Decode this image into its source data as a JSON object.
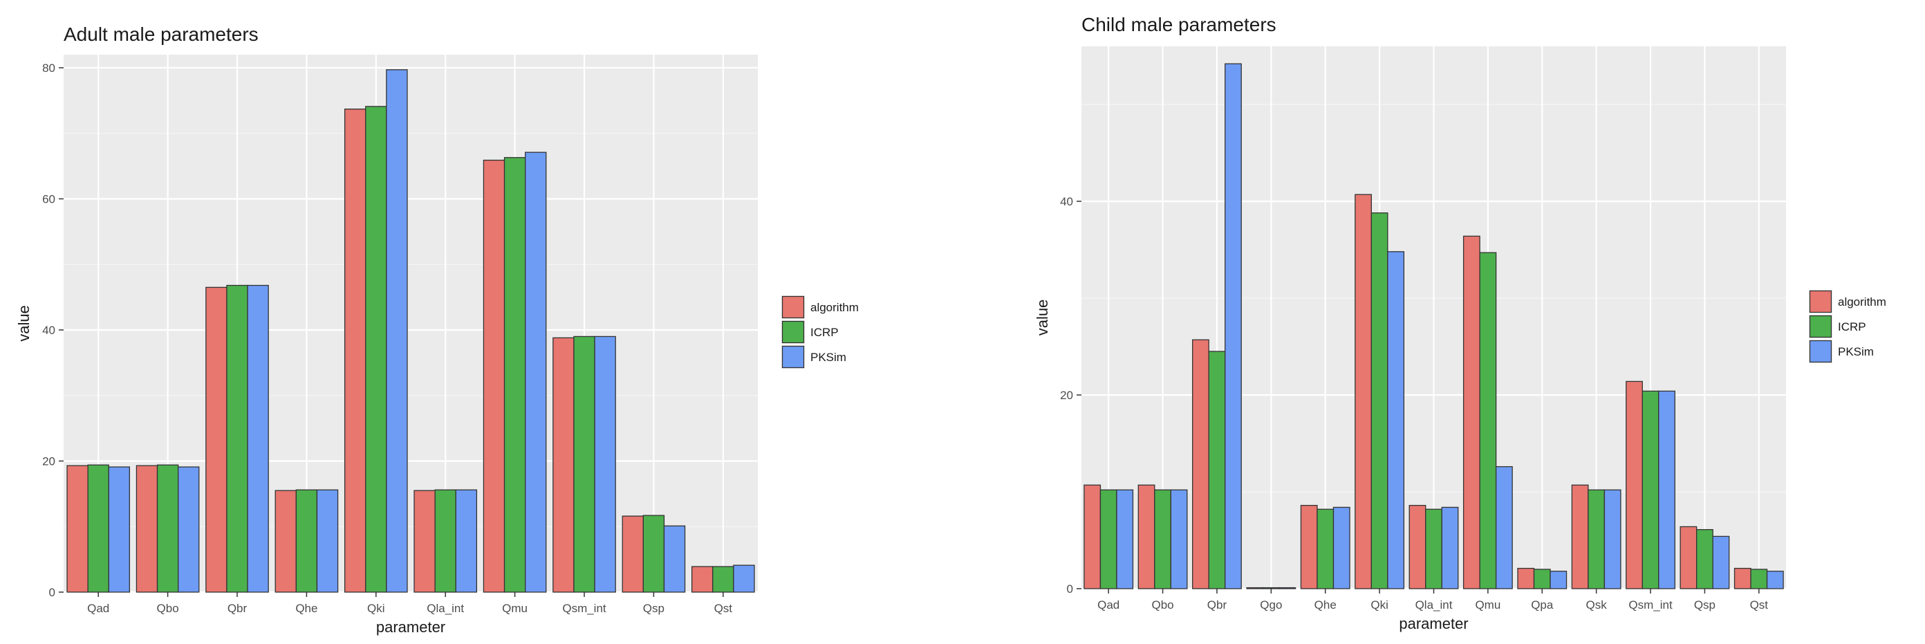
{
  "legend_colors": {
    "algorithm": "#e8776f",
    "ICRP": "#4cb04d",
    "PKSim": "#6e9cf5"
  },
  "chart_data": [
    {
      "type": "bar",
      "title": "Adult male parameters",
      "xlabel": "parameter",
      "ylabel": "value",
      "ylim": [
        0,
        82
      ],
      "yticks": [
        0,
        20,
        40,
        60,
        80
      ],
      "grid": true,
      "legend_position": "right",
      "categories": [
        "Qad",
        "Qbo",
        "Qbr",
        "Qhe",
        "Qki",
        "Qla_int",
        "Qmu",
        "Qsm_int",
        "Qsp",
        "Qst"
      ],
      "series": [
        {
          "name": "algorithm",
          "values": [
            19.3,
            19.3,
            46.5,
            15.5,
            73.7,
            15.5,
            65.9,
            38.8,
            11.6,
            3.9
          ]
        },
        {
          "name": "ICRP",
          "values": [
            19.4,
            19.4,
            46.8,
            15.6,
            74.1,
            15.6,
            66.3,
            39.0,
            11.7,
            3.9
          ]
        },
        {
          "name": "PKSim",
          "values": [
            19.1,
            19.1,
            46.8,
            15.6,
            79.7,
            15.6,
            67.1,
            39.0,
            10.1,
            4.1
          ]
        }
      ]
    },
    {
      "type": "bar",
      "title": "Child male parameters",
      "xlabel": "parameter",
      "ylabel": "value",
      "ylim": [
        0,
        56
      ],
      "yticks": [
        0,
        20,
        40
      ],
      "grid": true,
      "legend_position": "right",
      "categories": [
        "Qad",
        "Qbo",
        "Qbr",
        "Qgo",
        "Qhe",
        "Qki",
        "Qla_int",
        "Qmu",
        "Qpa",
        "Qsk",
        "Qsm_int",
        "Qsp",
        "Qst"
      ],
      "series": [
        {
          "name": "algorithm",
          "values": [
            10.7,
            10.7,
            25.7,
            0.1,
            8.6,
            40.7,
            8.6,
            36.4,
            2.1,
            10.7,
            21.4,
            6.4,
            2.1
          ]
        },
        {
          "name": "ICRP",
          "values": [
            10.2,
            10.2,
            24.5,
            0.1,
            8.2,
            38.8,
            8.2,
            34.7,
            2.0,
            10.2,
            20.4,
            6.1,
            2.0
          ]
        },
        {
          "name": "PKSim",
          "values": [
            10.2,
            10.2,
            54.2,
            0.1,
            8.4,
            34.8,
            8.4,
            12.6,
            1.8,
            10.2,
            20.4,
            5.4,
            1.8
          ]
        }
      ]
    }
  ]
}
